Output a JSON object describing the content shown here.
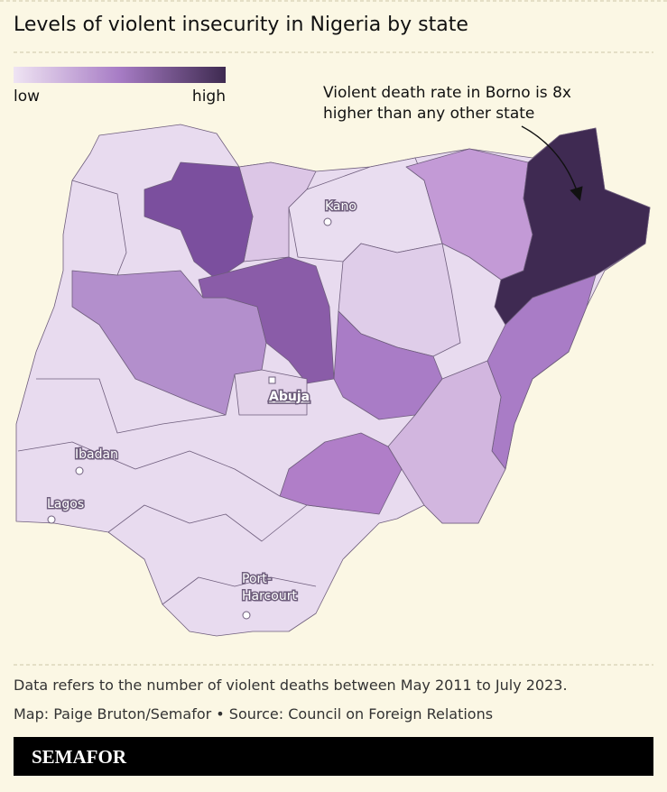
{
  "header": {
    "title": "Levels of violent insecurity in Nigeria by state"
  },
  "legend": {
    "low": "low",
    "high": "high"
  },
  "annotation": {
    "lines": [
      "Violent death rate in Borno is 8x",
      "higher than any other state"
    ]
  },
  "cities": {
    "kano": "Kano",
    "abuja": "Abuja",
    "ibadan": "Ibadan",
    "lagos": "Lagos",
    "port_harcourt": [
      "Port-",
      "Harcourt"
    ]
  },
  "footer": {
    "note": "Data refers to the number of violent deaths between May 2011 to July 2023.",
    "credit": "Map: Paige Bruton/Semafor • Source: Council on Foreign Relations",
    "logo": "SEMAFOR"
  }
}
